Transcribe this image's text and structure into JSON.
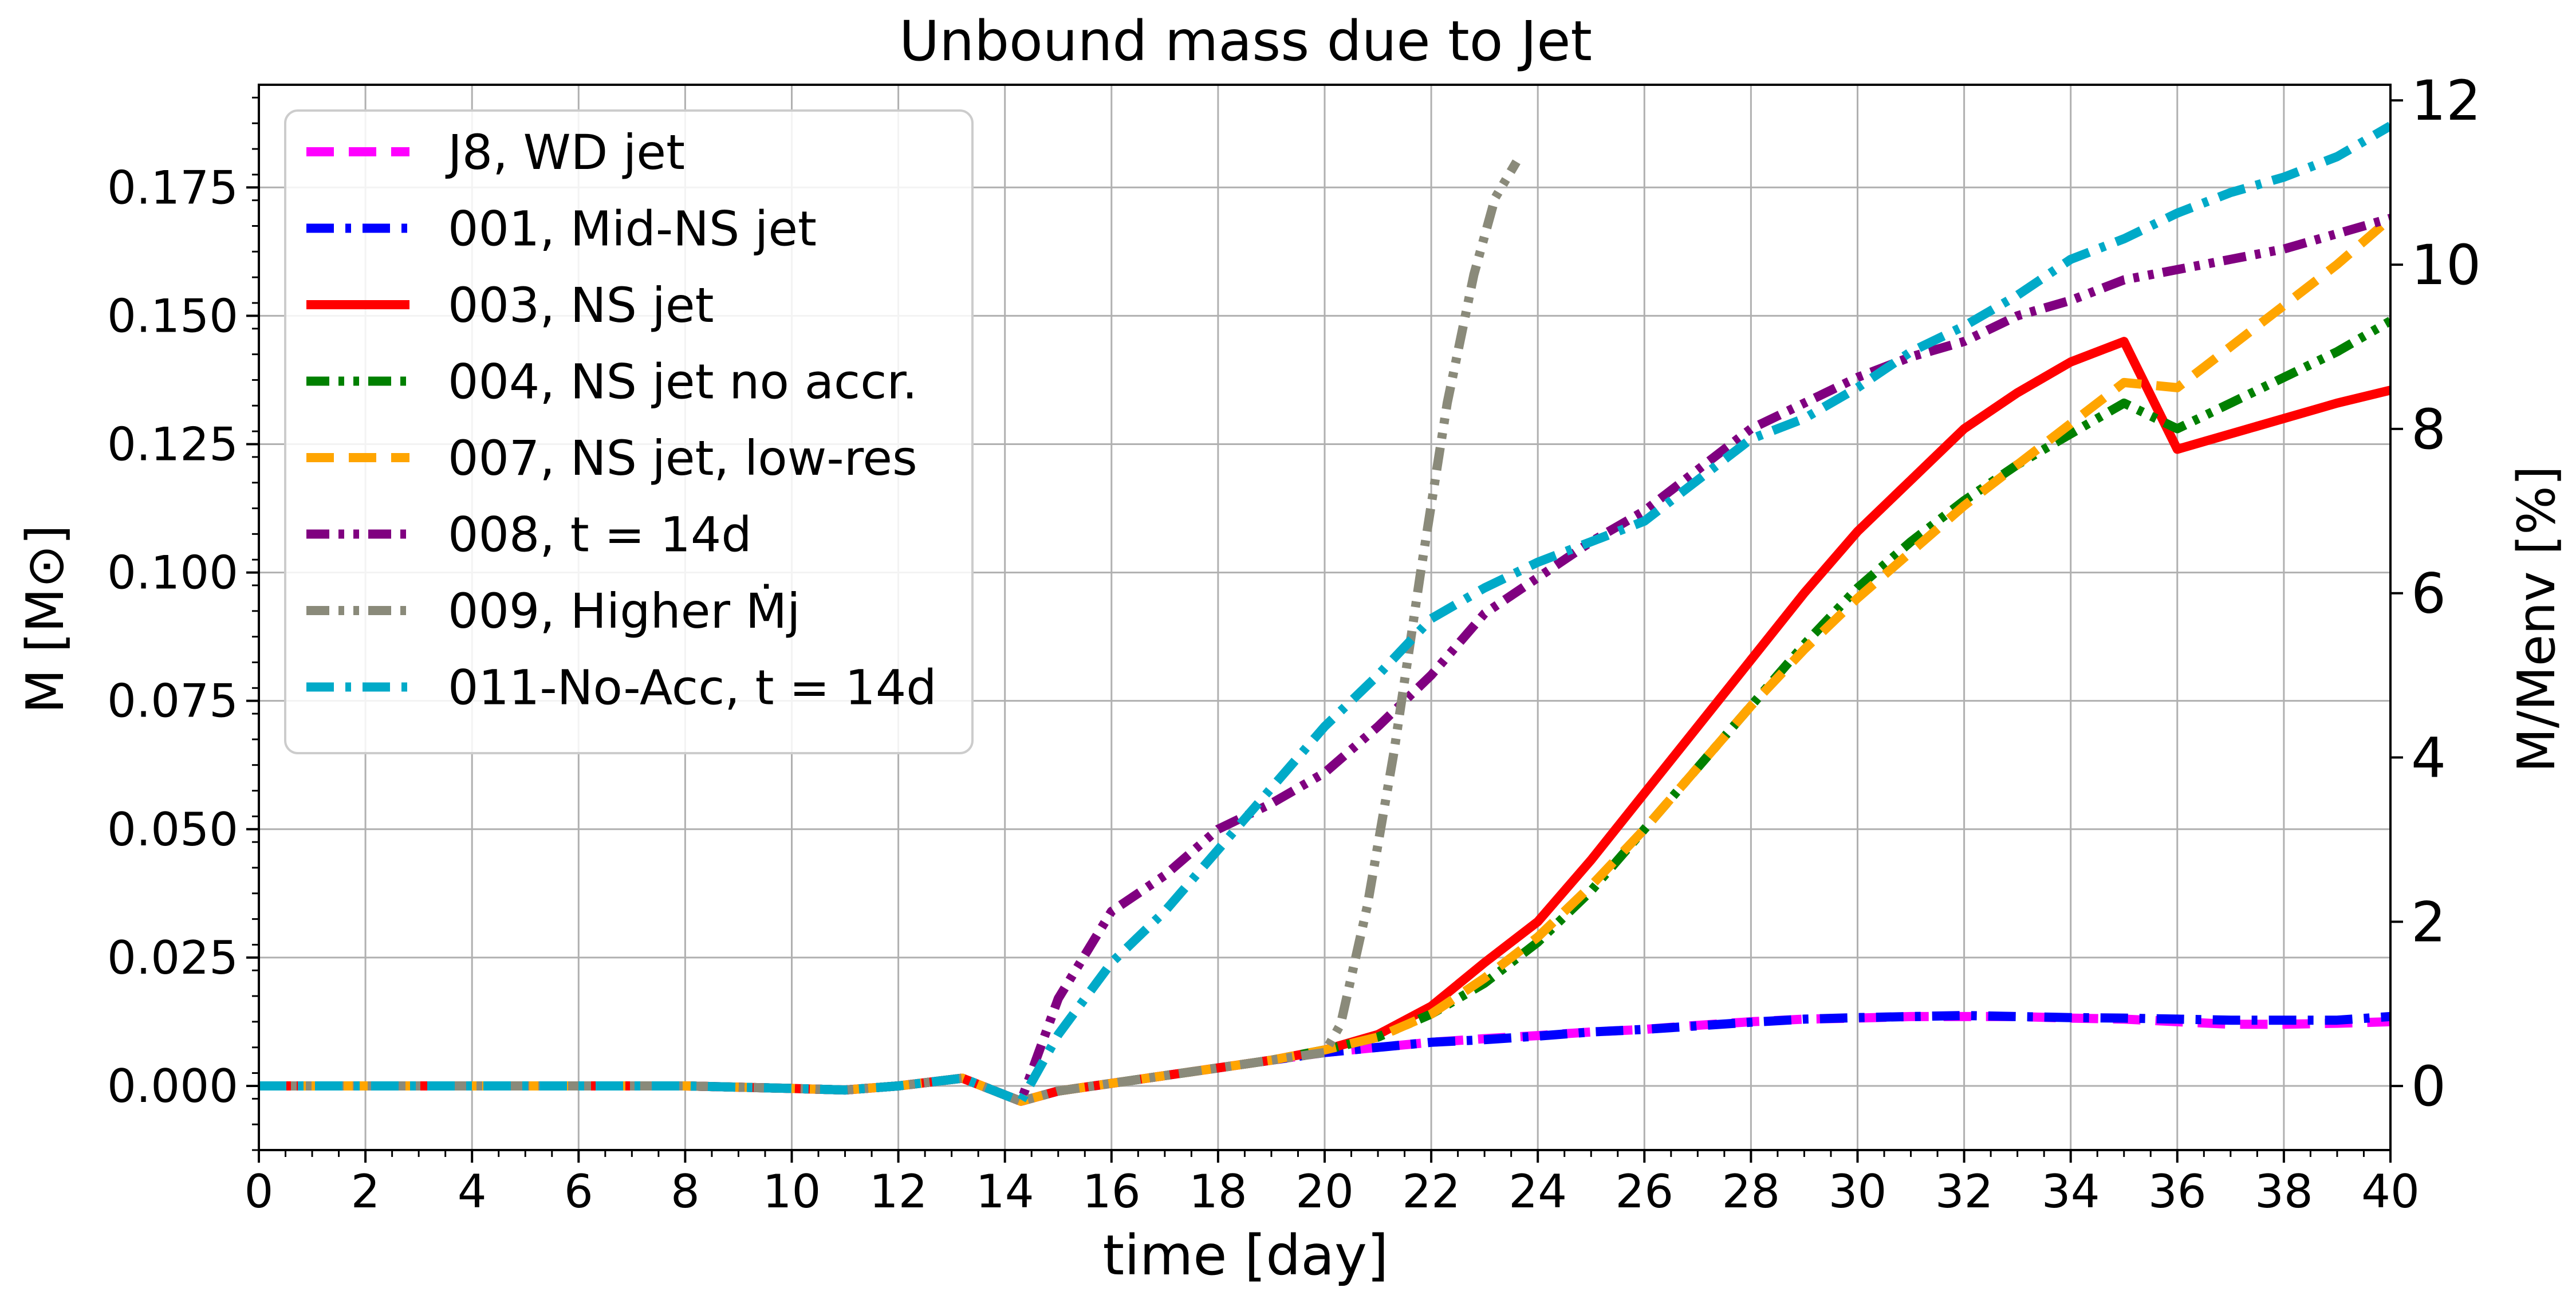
{
  "chart_data": {
    "type": "line",
    "title": "Unbound mass due to Jet",
    "xlabel": "time [day]",
    "ylabel": "M [M⊙]",
    "ylabel_right": "M/Menv [%]",
    "xlim": [
      0,
      40
    ],
    "ylim": [
      -0.0125,
      0.195
    ],
    "ylim_right": [
      -0.78,
      12.19
    ],
    "xticks": [
      "0",
      "2",
      "4",
      "6",
      "8",
      "10",
      "12",
      "14",
      "16",
      "18",
      "20",
      "22",
      "24",
      "26",
      "28",
      "30",
      "32",
      "34",
      "36",
      "38",
      "40"
    ],
    "yticks": [
      "0.000",
      "0.025",
      "0.050",
      "0.075",
      "0.100",
      "0.125",
      "0.150",
      "0.175"
    ],
    "yticks_right": [
      "0",
      "2",
      "4",
      "6",
      "8",
      "10",
      "12"
    ],
    "grid": true,
    "legend_position": "upper-left",
    "series": [
      {
        "name": "J8, WD jet",
        "color": "#ff00ff",
        "dash": "dashed",
        "x": [
          0,
          2,
          4,
          6,
          8,
          10,
          11,
          12,
          13.2,
          14.3,
          15,
          16,
          17,
          18,
          19,
          20,
          21,
          22,
          23,
          24,
          25,
          26,
          27,
          28,
          29,
          30,
          31,
          32,
          33,
          34,
          35,
          36,
          37,
          38,
          39,
          40
        ],
        "y": [
          0.0,
          0.0,
          0.0,
          0.0,
          0.0,
          -0.0005,
          -0.0008,
          0.0,
          0.0015,
          -0.003,
          -0.001,
          0.0005,
          0.002,
          0.0035,
          0.005,
          0.0065,
          0.0075,
          0.0085,
          0.0092,
          0.0098,
          0.0105,
          0.011,
          0.0118,
          0.0125,
          0.013,
          0.0132,
          0.0135,
          0.0135,
          0.0135,
          0.0132,
          0.013,
          0.0125,
          0.012,
          0.012,
          0.0122,
          0.0125
        ]
      },
      {
        "name": "001, Mid-NS jet",
        "color": "#0000ff",
        "dash": "dashdot",
        "x": [
          0,
          2,
          4,
          6,
          8,
          10,
          11,
          12,
          13.2,
          14.3,
          15,
          16,
          17,
          18,
          19,
          20,
          21,
          22,
          23,
          24,
          25,
          26,
          27,
          28,
          29,
          30,
          31,
          32,
          33,
          34,
          35,
          36,
          37,
          38,
          39,
          40
        ],
        "y": [
          0.0,
          0.0,
          0.0,
          0.0,
          0.0,
          -0.0005,
          -0.0008,
          0.0,
          0.0015,
          -0.003,
          -0.001,
          0.0005,
          0.002,
          0.0035,
          0.005,
          0.0065,
          0.0075,
          0.0085,
          0.009,
          0.0097,
          0.0105,
          0.011,
          0.0117,
          0.0124,
          0.013,
          0.0133,
          0.0135,
          0.0137,
          0.0135,
          0.0133,
          0.0132,
          0.013,
          0.0128,
          0.0128,
          0.0128,
          0.0135
        ]
      },
      {
        "name": "003, NS jet",
        "color": "#ff0000",
        "dash": "solid",
        "x": [
          0,
          2,
          4,
          6,
          8,
          10,
          11,
          12,
          13.2,
          14.3,
          15,
          16,
          17,
          18,
          19,
          20,
          21,
          22,
          23,
          24,
          25,
          26,
          27,
          28,
          29,
          30,
          31,
          32,
          33,
          34,
          35,
          36,
          37,
          38,
          39,
          40
        ],
        "y": [
          0.0,
          0.0,
          0.0,
          0.0,
          0.0,
          -0.0005,
          -0.0008,
          0.0,
          0.0015,
          -0.003,
          -0.001,
          0.0005,
          0.002,
          0.0035,
          0.005,
          0.007,
          0.01,
          0.0155,
          0.024,
          0.032,
          0.044,
          0.057,
          0.07,
          0.083,
          0.096,
          0.108,
          0.118,
          0.128,
          0.135,
          0.141,
          0.145,
          0.124,
          0.127,
          0.13,
          0.133,
          0.1355
        ]
      },
      {
        "name": "004, NS jet no accr.",
        "color": "#008000",
        "dash": "dashdotdot",
        "x": [
          0,
          2,
          4,
          6,
          8,
          10,
          11,
          12,
          13.2,
          14.3,
          15,
          16,
          17,
          18,
          19,
          20,
          21,
          22,
          23,
          24,
          25,
          26,
          27,
          28,
          29,
          30,
          31,
          32,
          33,
          34,
          35,
          36,
          37,
          38,
          39,
          40
        ],
        "y": [
          0.0,
          0.0,
          0.0,
          0.0,
          0.0,
          -0.0005,
          -0.0008,
          0.0,
          0.0015,
          -0.003,
          -0.001,
          0.0005,
          0.002,
          0.0035,
          0.005,
          0.007,
          0.0095,
          0.014,
          0.02,
          0.028,
          0.038,
          0.05,
          0.062,
          0.074,
          0.086,
          0.097,
          0.106,
          0.114,
          0.121,
          0.127,
          0.133,
          0.128,
          0.133,
          0.138,
          0.143,
          0.149
        ]
      },
      {
        "name": "007, NS jet, low-res",
        "color": "#ffa500",
        "dash": "dashed",
        "x": [
          0,
          2,
          4,
          6,
          8,
          10,
          11,
          12,
          13.2,
          14.3,
          15,
          16,
          17,
          18,
          19,
          20,
          21,
          22,
          23,
          24,
          25,
          26,
          27,
          28,
          29,
          30,
          31,
          32,
          33,
          34,
          35,
          36,
          37,
          38,
          39,
          40
        ],
        "y": [
          0.0,
          0.0,
          0.0,
          0.0,
          0.0,
          -0.0005,
          -0.0008,
          0.0,
          0.0015,
          -0.003,
          -0.001,
          0.0005,
          0.002,
          0.0035,
          0.005,
          0.007,
          0.0095,
          0.014,
          0.021,
          0.029,
          0.039,
          0.05,
          0.062,
          0.074,
          0.085,
          0.095,
          0.104,
          0.113,
          0.121,
          0.129,
          0.137,
          0.136,
          0.144,
          0.152,
          0.16,
          0.169
        ]
      },
      {
        "name": "008, t = 14d",
        "color": "#800080",
        "dash": "dashdotdot",
        "x": [
          0,
          2,
          4,
          6,
          8,
          10,
          11,
          12,
          13.2,
          14.3,
          15,
          16,
          17,
          18,
          19,
          20,
          21,
          22,
          23,
          24,
          25,
          26,
          27,
          28,
          29,
          30,
          31,
          32,
          33,
          34,
          35,
          36,
          37,
          38,
          39,
          40
        ],
        "y": [
          0.0,
          0.0,
          0.0,
          0.0,
          0.0,
          -0.0005,
          -0.0008,
          0.0,
          0.0015,
          -0.003,
          0.017,
          0.034,
          0.041,
          0.05,
          0.055,
          0.061,
          0.07,
          0.08,
          0.092,
          0.099,
          0.106,
          0.112,
          0.12,
          0.128,
          0.133,
          0.138,
          0.142,
          0.145,
          0.15,
          0.153,
          0.157,
          0.159,
          0.161,
          0.163,
          0.166,
          0.169
        ]
      },
      {
        "name": "009, Higher Ṁj",
        "color": "#8a8a7a",
        "dash": "dashdotdot",
        "x": [
          0,
          2,
          4,
          6,
          8,
          10,
          11,
          12,
          13.2,
          14.3,
          15,
          16,
          17,
          18,
          19,
          20,
          20.3,
          20.8,
          21.3,
          21.8,
          22.3,
          22.8,
          23.2,
          23.6
        ],
        "y": [
          0.0,
          0.0,
          0.0,
          0.0,
          0.0,
          -0.0005,
          -0.0008,
          0.0,
          0.0015,
          -0.003,
          -0.001,
          0.0005,
          0.002,
          0.0035,
          0.005,
          0.0065,
          0.012,
          0.035,
          0.065,
          0.1,
          0.133,
          0.158,
          0.173,
          0.18
        ]
      },
      {
        "name": "011-No-Acc, t = 14d",
        "color": "#00aac8",
        "dash": "dashdot",
        "x": [
          0,
          2,
          4,
          6,
          8,
          10,
          11,
          12,
          13.2,
          14.3,
          15,
          16,
          17,
          18,
          19,
          20,
          21,
          22,
          23,
          24,
          25,
          26,
          27,
          28,
          29,
          30,
          31,
          32,
          33,
          34,
          35,
          36,
          37,
          38,
          39,
          40
        ],
        "y": [
          0.0,
          0.0,
          0.0,
          0.0,
          0.0,
          -0.0005,
          -0.0008,
          0.0,
          0.0015,
          -0.003,
          0.01,
          0.024,
          0.034,
          0.046,
          0.058,
          0.07,
          0.08,
          0.091,
          0.097,
          0.102,
          0.106,
          0.11,
          0.118,
          0.126,
          0.13,
          0.136,
          0.143,
          0.148,
          0.154,
          0.161,
          0.165,
          0.17,
          0.174,
          0.177,
          0.181,
          0.187
        ]
      }
    ]
  }
}
